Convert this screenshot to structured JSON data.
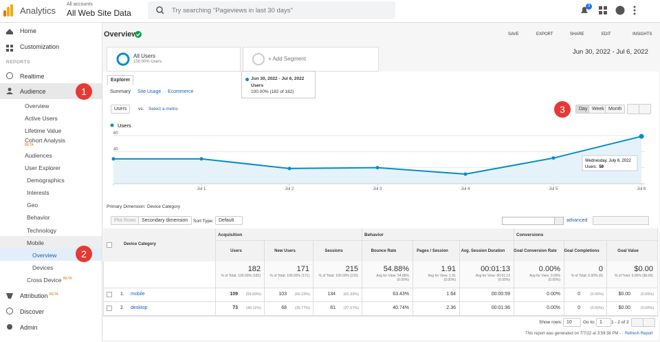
{
  "header": {
    "logo": "Analytics",
    "account_small": "All accounts",
    "account": "All Web Site Data",
    "search": "Try searching \"Pageviews in last 30 days\"",
    "notifications": "3"
  },
  "sidebar": {
    "home": "Home",
    "customization": "Customization",
    "reports": "REPORTS",
    "realtime": "Realtime",
    "audience": "Audience",
    "audience_items": [
      "Overview",
      "Active Users",
      "Lifetime Value",
      "Cohort Analysis",
      "Audiences",
      "User Explorer",
      "Demographics",
      "Interests",
      "Geo",
      "Behavior",
      "Technology",
      "Mobile"
    ],
    "mobile_items": [
      "Overview",
      "Devices"
    ],
    "cross_device": "Cross Device",
    "attribution": "Attribution",
    "discover": "Discover",
    "admin": "Admin",
    "beta": "BETA",
    "step1": "1",
    "step2": "2"
  },
  "toolbar": {
    "title": "Overview",
    "save": "SAVE",
    "export": "EXPORT",
    "share": "SHARE",
    "edit": "EDIT",
    "insights": "INSIGHTS"
  },
  "segments": {
    "all_users": "All Users",
    "all_users_pct": "100.00% Users",
    "add": "+ Add Segment",
    "date_range": "Jun 30, 2022 - Jul 6, 2022"
  },
  "tabs": {
    "explorer": "Explorer",
    "summary": "Summary",
    "site_usage": "Site Usage",
    "ecommerce": "Ecommerce"
  },
  "popup": {
    "date": "Jun 30, 2022 - Jul 6, 2022",
    "metric": "Users",
    "value": "100.00% (182 of 182)"
  },
  "controls": {
    "metric": "Users",
    "vs": "vs.",
    "select": "Select a metric",
    "day": "Day",
    "week": "Week",
    "month": "Month",
    "step3": "3"
  },
  "chart_data": {
    "type": "line",
    "x": [
      null,
      "Jul 1",
      "Jul 2",
      "Jul 3",
      "Jul 4",
      "Jul 5",
      "Jul 6"
    ],
    "series": [
      {
        "name": "Users",
        "color": "#058dc7",
        "values": [
          31,
          31,
          19,
          20,
          12,
          32,
          59
        ]
      }
    ],
    "ylim": [
      0,
      66
    ],
    "yticks": [
      20,
      40,
      60
    ],
    "grid": true,
    "tooltip_title": "Wednesday, July 6, 2022",
    "tooltip_label": "Users:"
  },
  "dimension": {
    "label": "Primary Dimension:",
    "value": "Device Category"
  },
  "table_controls": {
    "plot_rows": "Plot Rows",
    "secondary": "Secondary dimension",
    "sort_type": "Sort Type:",
    "sort": "Default",
    "advanced": "advanced"
  },
  "table": {
    "groups": [
      "Acquisition",
      "Behavior",
      "Conversions"
    ],
    "columns": [
      "Device Category",
      "Users",
      "New Users",
      "Sessions",
      "Bounce Rate",
      "Pages / Session",
      "Avg. Session Duration",
      "Goal Conversion Rate",
      "Goal Completions",
      "Goal Value"
    ],
    "totals": [
      {
        "value": "182",
        "note": "% of Total: 100.00% (182)"
      },
      {
        "value": "171",
        "note": "% of Total: 100.00% (171)"
      },
      {
        "value": "215",
        "note": "% of Total: 100.00% (215)"
      },
      {
        "value": "54.88%",
        "note": "Avg for View: 54.88% (0.00%)"
      },
      {
        "value": "1.91",
        "note": "Avg for View: 1.91 (0.00%)"
      },
      {
        "value": "00:01:13",
        "note": "Avg for View: 00:01:13 (0.00%)"
      },
      {
        "value": "0.00%",
        "note": "Avg for View: 0.00% (0.00%)"
      },
      {
        "value": "0",
        "note": "% of Total: 0.00% (0)"
      },
      {
        "value": "$0.00",
        "note": "% of Total: 0.00% ($0.00)"
      }
    ],
    "rows": [
      {
        "index": "1.",
        "name": "mobile",
        "cells": [
          [
            "109",
            "(59.89%)"
          ],
          [
            "103",
            "(60.23%)"
          ],
          [
            "134",
            "(62.33%)"
          ],
          [
            "63.43%"
          ],
          [
            "1.64"
          ],
          [
            "00:00:59"
          ],
          [
            "0.00%"
          ],
          [
            "0",
            "(0.00%)"
          ],
          [
            "$0.00",
            "(0.00%)"
          ]
        ]
      },
      {
        "index": "2.",
        "name": "desktop",
        "cells": [
          [
            "73",
            "(40.11%)"
          ],
          [
            "68",
            "(39.77%)"
          ],
          [
            "81",
            "(37.67%)"
          ],
          [
            "40.74%"
          ],
          [
            "2.36"
          ],
          [
            "00:01:36"
          ],
          [
            "0.00%"
          ],
          [
            "0",
            "(0.00%)"
          ],
          [
            "$0.00",
            "(0.00%)"
          ]
        ]
      }
    ]
  },
  "footer": {
    "show_rows": "Show rows:",
    "rows": "10",
    "go_to": "Go to:",
    "page": "1",
    "range": "1 - 2 of 2",
    "generated": "This report was generated on 7/7/22 at 3:59:38 PM -",
    "refresh": "Refresh Report"
  }
}
